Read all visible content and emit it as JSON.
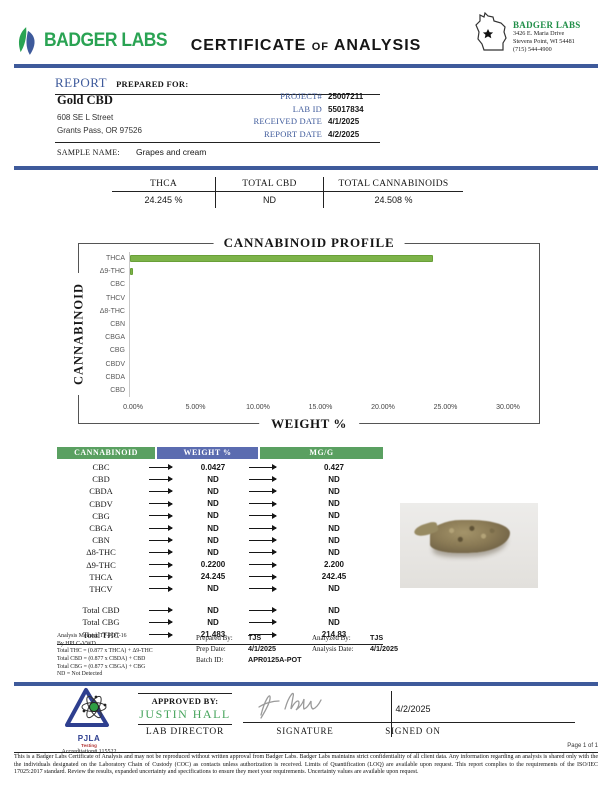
{
  "header": {
    "logo_text": "BADGER LABS",
    "title_certificate": "CERTIFICATE",
    "title_of": "OF",
    "title_analysis": "ANALYSIS",
    "lab_address": {
      "name": "BADGER LABS",
      "street": "3426 E. Maria Drive",
      "city": "Stevens Point, WI 54481",
      "phone": "(715) 544-4900"
    }
  },
  "report": {
    "section_label": "REPORT",
    "prepared_for_label": "PREPARED FOR:",
    "client": {
      "name": "Gold CBD",
      "address_line1": "608 SE L Street",
      "address_line2": "Grants Pass, OR 97526"
    },
    "fields": [
      {
        "label": "PROJECT#",
        "value": "25007211"
      },
      {
        "label": "LAB ID",
        "value": "55017834"
      },
      {
        "label": "RECEIVED DATE",
        "value": "4/1/2025"
      },
      {
        "label": "REPORT DATE",
        "value": "4/2/2025"
      }
    ],
    "sample_name_label": "SAMPLE NAME:",
    "sample_name": "Grapes and cream"
  },
  "summary": {
    "columns": [
      {
        "label": "THCA",
        "value": "24.245 %"
      },
      {
        "label": "TOTAL CBD",
        "value": "ND"
      },
      {
        "label": "TOTAL CANNABINOIDS",
        "value": "24.508 %"
      }
    ]
  },
  "chart_data": {
    "type": "bar",
    "orientation": "horizontal",
    "title": "CANNABINOID PROFILE",
    "xlabel": "WEIGHT %",
    "ylabel": "CANNABINOID",
    "categories": [
      "THCA",
      "Δ9-THC",
      "CBC",
      "THCV",
      "Δ8-THC",
      "CBN",
      "CBGA",
      "CBG",
      "CBDV",
      "CBDA",
      "CBD"
    ],
    "values": [
      24.245,
      0.22,
      0.0427,
      0,
      0,
      0,
      0,
      0,
      0,
      0,
      0
    ],
    "xlim": [
      0,
      30
    ],
    "xticks": [
      "0.00%",
      "5.00%",
      "10.00%",
      "15.00%",
      "20.00%",
      "25.00%",
      "30.00%"
    ],
    "bar_color": "#7db349",
    "grid": false,
    "legend": false
  },
  "results_table": {
    "headers": [
      "CANNABINOID",
      "WEIGHT %",
      "MG/G"
    ],
    "rows": [
      {
        "name": "CBC",
        "weight": "0.0427",
        "mgg": "0.427"
      },
      {
        "name": "CBD",
        "weight": "ND",
        "mgg": "ND"
      },
      {
        "name": "CBDA",
        "weight": "ND",
        "mgg": "ND"
      },
      {
        "name": "CBDV",
        "weight": "ND",
        "mgg": "ND"
      },
      {
        "name": "CBG",
        "weight": "ND",
        "mgg": "ND"
      },
      {
        "name": "CBGA",
        "weight": "ND",
        "mgg": "ND"
      },
      {
        "name": "CBN",
        "weight": "ND",
        "mgg": "ND"
      },
      {
        "name": "Δ8-THC",
        "weight": "ND",
        "mgg": "ND"
      },
      {
        "name": "Δ9-THC",
        "weight": "0.2200",
        "mgg": "2.200"
      },
      {
        "name": "THCA",
        "weight": "24.245",
        "mgg": "242.45"
      },
      {
        "name": "THCV",
        "weight": "ND",
        "mgg": "ND"
      }
    ],
    "totals": [
      {
        "name": "Total CBD",
        "weight": "ND",
        "mgg": "ND"
      },
      {
        "name": "Total CBG",
        "weight": "ND",
        "mgg": "ND"
      },
      {
        "name": "Total THC",
        "weight": "21.483",
        "mgg": "214.83"
      }
    ]
  },
  "analysis_notes": {
    "line1": "Analysis Method: TP-POT-16",
    "line2": "By HPLC-VWD",
    "line3": "Total THC = (0.877 x THCA) + Δ9-THC",
    "line4": "Total CBD = (0.877 x CBDA) + CBD",
    "line5": "Total CBG = (0.877 x CBGA) + CBG",
    "line6": "ND = Not Detected"
  },
  "prep_info": {
    "prepared_by_label": "Prepared By:",
    "prepared_by": "TJS",
    "prep_date_label": "Prep Date:",
    "prep_date": "4/1/2025",
    "batch_id_label": "Batch ID:",
    "batch_id": "APR0125A-POT",
    "analyzed_by_label": "Analyzed By:",
    "analyzed_by": "TJS",
    "analysis_date_label": "Analysis Date:",
    "analysis_date": "4/1/2025"
  },
  "approval": {
    "approved_by_label": "APPROVED BY:",
    "approver_name": "JUSTIN HALL",
    "approver_title": "LAB DIRECTOR",
    "signature_label": "SIGNATURE",
    "signed_on_label": "SIGNED ON",
    "signed_on_date": "4/2/2025"
  },
  "accreditation": {
    "org": "PJLA",
    "sub": "Testing",
    "number": "Accreditation# 115522"
  },
  "footer": {
    "page": "Page 1 of 1",
    "disclaimer": "This is a Badger Labs Certificate of Analysis and may not be reproduced without written approval from Badger Labs. Badger Labs maintains strict confidentiality of all client data. Any information regarding an analysis is shared only with the the individuals designated on the Laboratory Chain of Custody (COC) as contacts unless authorization is received. Limits of Quantification (LOQ) are available upon request. This report complies to the requirements of the ISO/IEC 17025:2017 standard. Review the results, expanded uncertainty and specifications to ensure they meet your requirements. Uncertainty values are available upon request."
  },
  "colors": {
    "accent_blue": "#3e5a9b",
    "brand_green": "#2aa353",
    "table_green": "#5aa061",
    "table_blue": "#5b6cb0",
    "bar_green": "#7db349"
  }
}
